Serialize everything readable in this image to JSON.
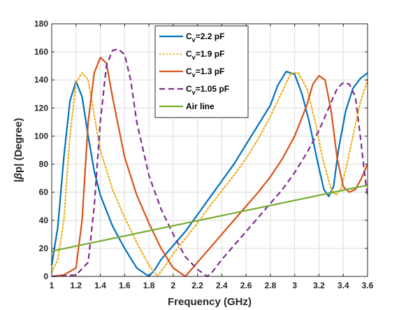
{
  "chart_data": {
    "type": "line",
    "xlabel": "Frequency (GHz)",
    "ylabel_parts": [
      "|",
      "β",
      "p| (Degree)"
    ],
    "xlim": [
      1,
      3.6
    ],
    "ylim": [
      0,
      180
    ],
    "xticks": [
      1,
      1.2,
      1.4,
      1.6,
      1.8,
      2,
      2.2,
      2.4,
      2.6,
      2.8,
      3,
      3.2,
      3.4,
      3.6
    ],
    "xtick_labels": [
      "1",
      "1.2",
      "1.4",
      "1.6",
      "1.8",
      "2",
      "2.2",
      "2.4",
      "2.6",
      "2.8",
      "3",
      "3.2",
      "3.4",
      "3.6"
    ],
    "yticks": [
      0,
      20,
      40,
      60,
      80,
      100,
      120,
      140,
      160,
      180
    ],
    "ytick_labels": [
      "0",
      "20",
      "40",
      "60",
      "80",
      "100",
      "120",
      "140",
      "160",
      "180"
    ],
    "grid": true,
    "legend_position": "top-center",
    "series": [
      {
        "legend": {
          "main": "C",
          "sub": "v",
          "rest": "=2.2 pF"
        },
        "color": "#0072BD",
        "dash": "solid",
        "x": [
          1.0,
          1.05,
          1.1,
          1.15,
          1.2,
          1.25,
          1.3,
          1.35,
          1.4,
          1.5,
          1.6,
          1.7,
          1.8,
          1.85,
          1.9,
          2.0,
          2.1,
          2.2,
          2.3,
          2.4,
          2.5,
          2.6,
          2.7,
          2.8,
          2.86,
          2.93,
          3.0,
          3.06,
          3.12,
          3.18,
          3.24,
          3.28,
          3.32,
          3.36,
          3.42,
          3.48,
          3.54,
          3.6
        ],
        "y": [
          8,
          35,
          85,
          125,
          139,
          128,
          100,
          75,
          58,
          36,
          20,
          6,
          0,
          5,
          12,
          22,
          32,
          44,
          56,
          68,
          80,
          94,
          108,
          122,
          136,
          146,
          144,
          130,
          110,
          85,
          62,
          57,
          64,
          90,
          118,
          134,
          141,
          145
        ]
      },
      {
        "legend": {
          "main": "C",
          "sub": "v",
          "rest": "=1.9 pF"
        },
        "color": "#EDB120",
        "dash": "dotted",
        "x": [
          1.0,
          1.05,
          1.1,
          1.15,
          1.2,
          1.25,
          1.3,
          1.35,
          1.4,
          1.5,
          1.6,
          1.7,
          1.8,
          1.87,
          1.92,
          2.0,
          2.1,
          2.2,
          2.3,
          2.4,
          2.5,
          2.6,
          2.7,
          2.8,
          2.9,
          2.97,
          3.03,
          3.1,
          3.17,
          3.23,
          3.3,
          3.34,
          3.38,
          3.42,
          3.48,
          3.54,
          3.6
        ],
        "y": [
          3,
          12,
          40,
          100,
          138,
          145,
          140,
          115,
          90,
          62,
          42,
          24,
          8,
          0,
          6,
          16,
          27,
          38,
          50,
          61,
          72,
          84,
          98,
          114,
          132,
          145,
          145,
          134,
          110,
          84,
          62,
          58,
          62,
          76,
          100,
          124,
          140
        ]
      },
      {
        "legend": {
          "main": "C",
          "sub": "v",
          "rest": "=1.3 pF"
        },
        "color": "#D95319",
        "dash": "solid",
        "x": [
          1.0,
          1.1,
          1.2,
          1.25,
          1.3,
          1.35,
          1.4,
          1.45,
          1.5,
          1.6,
          1.7,
          1.8,
          1.9,
          2.0,
          2.1,
          2.2,
          2.3,
          2.4,
          2.5,
          2.6,
          2.7,
          2.8,
          2.9,
          3.0,
          3.1,
          3.15,
          3.2,
          3.25,
          3.3,
          3.35,
          3.4,
          3.45,
          3.5,
          3.55,
          3.6
        ],
        "y": [
          0,
          1,
          6,
          40,
          110,
          145,
          156,
          152,
          128,
          85,
          58,
          38,
          20,
          6,
          0,
          10,
          20,
          30,
          40,
          50,
          60,
          71,
          84,
          100,
          122,
          137,
          143,
          140,
          118,
          84,
          64,
          60,
          62,
          70,
          80
        ]
      },
      {
        "legend": {
          "main": "C",
          "sub": "v",
          "rest": "=1.05 pF"
        },
        "color": "#7E2F8E",
        "dash": "dashed",
        "x": [
          1.0,
          1.2,
          1.3,
          1.35,
          1.4,
          1.45,
          1.5,
          1.55,
          1.6,
          1.65,
          1.7,
          1.8,
          1.9,
          2.0,
          2.1,
          2.2,
          2.28,
          2.32,
          2.4,
          2.5,
          2.6,
          2.7,
          2.8,
          2.9,
          3.0,
          3.1,
          3.2,
          3.3,
          3.35,
          3.4,
          3.45,
          3.5,
          3.54,
          3.58,
          3.6
        ],
        "y": [
          0,
          1,
          10,
          50,
          110,
          150,
          161,
          162,
          158,
          140,
          110,
          72,
          48,
          30,
          14,
          5,
          0,
          3,
          12,
          22,
          32,
          42,
          52,
          62,
          74,
          88,
          104,
          124,
          134,
          138,
          137,
          128,
          100,
          70,
          58
        ]
      },
      {
        "legend": {
          "main": "Air line",
          "sub": "",
          "rest": ""
        },
        "color": "#77AC30",
        "dash": "solid",
        "x": [
          1.0,
          3.6
        ],
        "y": [
          18,
          65
        ]
      }
    ]
  }
}
